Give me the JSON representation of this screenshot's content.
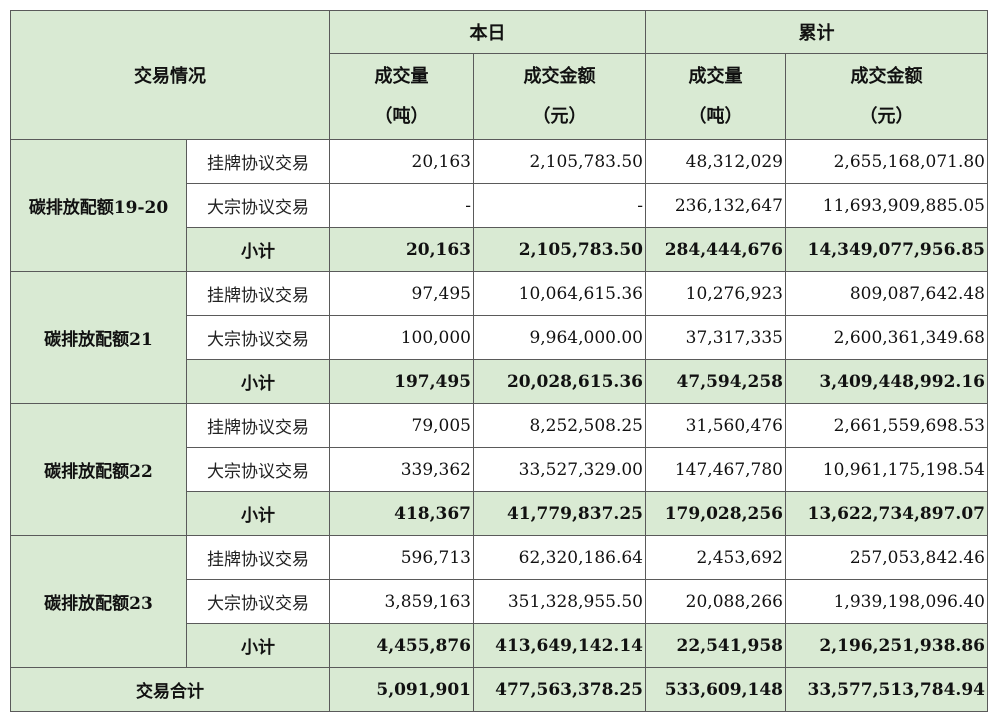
{
  "header": {
    "trade_info": "交易情况",
    "today": "本日",
    "cumulative": "累计",
    "volume": "成交量",
    "volume_unit": "（吨）",
    "amount": "成交金额",
    "amount_unit": "（元）"
  },
  "groups": [
    {
      "name": "碳排放配额19-20",
      "rows": [
        {
          "type": "挂牌协议交易",
          "today_vol": "20,163",
          "today_amt": "2,105,783.50",
          "cum_vol": "48,312,029",
          "cum_amt": "2,655,168,071.80"
        },
        {
          "type": "大宗协议交易",
          "today_vol": "-",
          "today_amt": "-",
          "cum_vol": "236,132,647",
          "cum_amt": "11,693,909,885.05"
        }
      ],
      "subtotal": {
        "label": "小计",
        "today_vol": "20,163",
        "today_amt": "2,105,783.50",
        "cum_vol": "284,444,676",
        "cum_amt": "14,349,077,956.85"
      }
    },
    {
      "name": "碳排放配额21",
      "rows": [
        {
          "type": "挂牌协议交易",
          "today_vol": "97,495",
          "today_amt": "10,064,615.36",
          "cum_vol": "10,276,923",
          "cum_amt": "809,087,642.48"
        },
        {
          "type": "大宗协议交易",
          "today_vol": "100,000",
          "today_amt": "9,964,000.00",
          "cum_vol": "37,317,335",
          "cum_amt": "2,600,361,349.68"
        }
      ],
      "subtotal": {
        "label": "小计",
        "today_vol": "197,495",
        "today_amt": "20,028,615.36",
        "cum_vol": "47,594,258",
        "cum_amt": "3,409,448,992.16"
      }
    },
    {
      "name": "碳排放配额22",
      "rows": [
        {
          "type": "挂牌协议交易",
          "today_vol": "79,005",
          "today_amt": "8,252,508.25",
          "cum_vol": "31,560,476",
          "cum_amt": "2,661,559,698.53"
        },
        {
          "type": "大宗协议交易",
          "today_vol": "339,362",
          "today_amt": "33,527,329.00",
          "cum_vol": "147,467,780",
          "cum_amt": "10,961,175,198.54"
        }
      ],
      "subtotal": {
        "label": "小计",
        "today_vol": "418,367",
        "today_amt": "41,779,837.25",
        "cum_vol": "179,028,256",
        "cum_amt": "13,622,734,897.07"
      }
    },
    {
      "name": "碳排放配额23",
      "rows": [
        {
          "type": "挂牌协议交易",
          "today_vol": "596,713",
          "today_amt": "62,320,186.64",
          "cum_vol": "2,453,692",
          "cum_amt": "257,053,842.46"
        },
        {
          "type": "大宗协议交易",
          "today_vol": "3,859,163",
          "today_amt": "351,328,955.50",
          "cum_vol": "20,088,266",
          "cum_amt": "1,939,198,096.40"
        }
      ],
      "subtotal": {
        "label": "小计",
        "today_vol": "4,455,876",
        "today_amt": "413,649,142.14",
        "cum_vol": "22,541,958",
        "cum_amt": "2,196,251,938.86"
      }
    }
  ],
  "total": {
    "label": "交易合计",
    "today_vol": "5,091,901",
    "today_amt": "477,563,378.25",
    "cum_vol": "533,609,148",
    "cum_amt": "33,577,513,784.94"
  },
  "colors": {
    "header_bg": "#d9ead3",
    "border": "#5a5a5a"
  }
}
